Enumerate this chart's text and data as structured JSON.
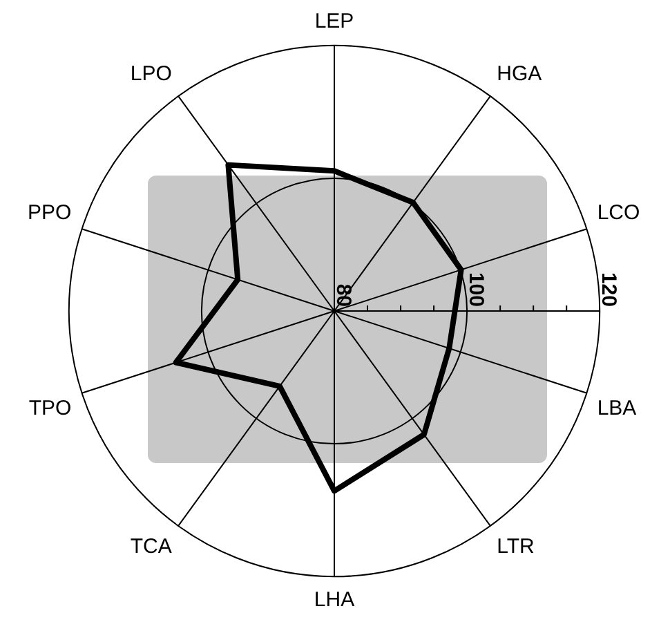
{
  "chart_data": {
    "type": "radar",
    "categories": [
      "LEP",
      "HGA",
      "LCO",
      "LBA",
      "LTR",
      "LHA",
      "TCA",
      "TPO",
      "PPO",
      "LPO"
    ],
    "series": [
      {
        "color": "#000000",
        "values": [
          101.1,
          100.2,
          100.1,
          98.2,
          103.0,
          107.1,
          94.0,
          105.1,
          95.3,
          107.2
        ]
      }
    ],
    "ylim": [
      80,
      120
    ],
    "yticks": [
      80,
      100,
      120
    ],
    "grid": true,
    "marker": "none"
  }
}
